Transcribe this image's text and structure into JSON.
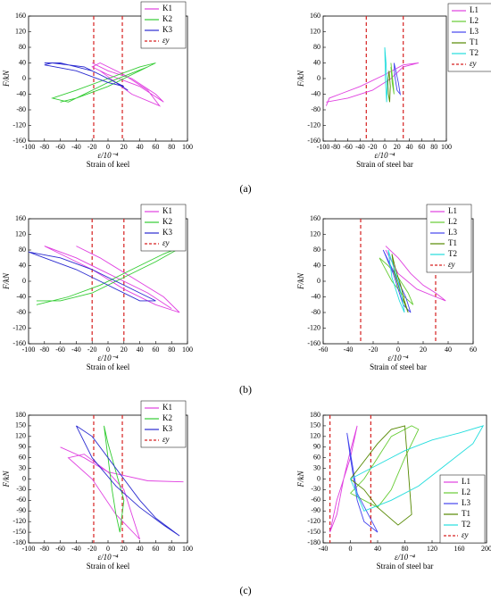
{
  "captions": [
    "(a)",
    "(b)",
    "(c)"
  ],
  "chart_data": [
    {
      "type": "line",
      "y_label": "F/kN",
      "x_label": "ε/10⁻⁴",
      "subtitle": "Strain of keel",
      "legend": "upper right",
      "xlim": [
        -100,
        100
      ],
      "ylim": [
        -160,
        160
      ],
      "xticks": [
        -100,
        -80,
        -60,
        -40,
        -20,
        0,
        20,
        40,
        60,
        80,
        100
      ],
      "yticks": [
        -160,
        -120,
        -80,
        -40,
        0,
        40,
        80,
        120,
        160
      ],
      "yield": {
        "name": "εy",
        "color": "#d62020",
        "values": [
          -18,
          18
        ]
      },
      "series": [
        {
          "name": "K1",
          "color": "#e040e0",
          "x": [
            -20,
            0,
            30,
            60,
            70,
            40,
            0,
            -20,
            -10,
            20,
            50,
            65,
            30,
            -10
          ],
          "y": [
            40,
            20,
            0,
            -40,
            -60,
            -20,
            10,
            30,
            40,
            10,
            -30,
            -70,
            -40,
            20
          ]
        },
        {
          "name": "K2",
          "color": "#33cc33",
          "x": [
            -60,
            -40,
            0,
            30,
            60,
            40,
            0,
            -40,
            -70,
            -50,
            0,
            50
          ],
          "y": [
            -60,
            -50,
            -20,
            10,
            40,
            30,
            0,
            -30,
            -50,
            -60,
            -10,
            30
          ]
        },
        {
          "name": "K3",
          "color": "#2a2ad0",
          "x": [
            -80,
            -60,
            -20,
            0,
            20,
            0,
            -40,
            -80,
            -70,
            -30,
            10,
            25
          ],
          "y": [
            40,
            40,
            20,
            0,
            -20,
            -10,
            20,
            35,
            40,
            30,
            -10,
            -30
          ]
        }
      ]
    },
    {
      "type": "line",
      "y_label": "F/kN",
      "x_label": "ε/10⁻⁴",
      "subtitle": "Strain of steel bar",
      "legend": "right",
      "xlim": [
        -100,
        100
      ],
      "ylim": [
        -160,
        160
      ],
      "xticks": [
        -100,
        -80,
        -60,
        -40,
        -20,
        0,
        20,
        40,
        60,
        80,
        100
      ],
      "yticks": [
        -160,
        -120,
        -80,
        -40,
        0,
        40,
        80,
        120,
        160
      ],
      "yield": {
        "name": "εy",
        "color": "#d62020",
        "values": [
          -30,
          30
        ]
      },
      "series": [
        {
          "name": "L1",
          "color": "#e040e0",
          "x": [
            -95,
            -60,
            -20,
            10,
            30,
            55,
            30,
            0,
            -40,
            -90,
            -95
          ],
          "y": [
            -60,
            -50,
            -30,
            0,
            30,
            40,
            35,
            10,
            -20,
            -50,
            -70
          ]
        },
        {
          "name": "L2",
          "color": "#66cc33",
          "x": [
            10,
            12,
            14,
            15,
            12,
            10
          ],
          "y": [
            40,
            10,
            -20,
            -40,
            -10,
            30
          ]
        },
        {
          "name": "L3",
          "color": "#4444ee",
          "x": [
            15,
            18,
            22,
            25,
            20,
            16,
            15
          ],
          "y": [
            40,
            20,
            -10,
            -40,
            -30,
            10,
            40
          ]
        },
        {
          "name": "T1",
          "color": "#558800",
          "x": [
            5,
            6,
            8,
            9,
            7,
            5
          ],
          "y": [
            -10,
            -40,
            -60,
            -20,
            20,
            -10
          ]
        },
        {
          "name": "T2",
          "color": "#22dddd",
          "x": [
            0,
            2,
            4,
            3,
            1,
            0
          ],
          "y": [
            80,
            40,
            -20,
            -60,
            0,
            80
          ]
        }
      ]
    },
    {
      "type": "line",
      "y_label": "F/kN",
      "x_label": "ε/10⁻⁴",
      "subtitle": "Strain of keel",
      "legend": "upper right",
      "xlim": [
        -100,
        100
      ],
      "ylim": [
        -160,
        160
      ],
      "xticks": [
        -100,
        -80,
        -60,
        -40,
        -20,
        0,
        20,
        40,
        60,
        80,
        100
      ],
      "yticks": [
        -160,
        -120,
        -80,
        -40,
        0,
        40,
        80,
        120,
        160
      ],
      "yield": {
        "name": "εy",
        "color": "#d62020",
        "values": [
          -20,
          20
        ]
      },
      "series": [
        {
          "name": "K1",
          "color": "#e040e0",
          "x": [
            -40,
            -10,
            30,
            70,
            90,
            60,
            20,
            -20,
            -60,
            -80,
            -40,
            0,
            50,
            80
          ],
          "y": [
            90,
            60,
            10,
            -40,
            -80,
            -60,
            -20,
            30,
            70,
            90,
            60,
            20,
            -30,
            -70
          ]
        },
        {
          "name": "K2",
          "color": "#33cc33",
          "x": [
            -90,
            -60,
            -20,
            20,
            60,
            95,
            70,
            30,
            -10,
            -50,
            -90
          ],
          "y": [
            -50,
            -50,
            -30,
            10,
            50,
            90,
            70,
            30,
            -10,
            -40,
            -60
          ]
        },
        {
          "name": "K3",
          "color": "#2a2ad0",
          "x": [
            -100,
            -60,
            -20,
            20,
            60,
            40,
            0,
            -40,
            -80,
            -100
          ],
          "y": [
            75,
            60,
            30,
            -10,
            -50,
            -50,
            -10,
            30,
            60,
            75
          ]
        }
      ]
    },
    {
      "type": "line",
      "y_label": "F/kN",
      "x_label": "ε/10⁻⁴",
      "subtitle": "Strain of steel bar",
      "legend": "upper right",
      "xlim": [
        -60,
        60
      ],
      "ylim": [
        -160,
        160
      ],
      "xticks": [
        -60,
        -40,
        -20,
        0,
        20,
        40,
        60
      ],
      "yticks": [
        -160,
        -120,
        -80,
        -40,
        0,
        40,
        80,
        120,
        160
      ],
      "yield": {
        "name": "εy",
        "color": "#d62020",
        "values": [
          -30,
          30
        ]
      },
      "series": [
        {
          "name": "L1",
          "color": "#e040e0",
          "x": [
            -10,
            0,
            10,
            20,
            30,
            38,
            30,
            15,
            0,
            -10
          ],
          "y": [
            90,
            60,
            20,
            -10,
            -30,
            -50,
            -40,
            -20,
            20,
            80
          ]
        },
        {
          "name": "L2",
          "color": "#66cc33",
          "x": [
            -15,
            -8,
            0,
            8,
            12,
            5,
            -5,
            -15
          ],
          "y": [
            60,
            40,
            10,
            -30,
            -60,
            -40,
            0,
            60
          ]
        },
        {
          "name": "L3",
          "color": "#4444ee",
          "x": [
            -12,
            -6,
            0,
            6,
            10,
            4,
            -4,
            -12
          ],
          "y": [
            80,
            40,
            0,
            -40,
            -80,
            -60,
            20,
            80
          ]
        },
        {
          "name": "T1",
          "color": "#558800",
          "x": [
            -5,
            -2,
            2,
            5,
            8,
            3,
            -3,
            -5
          ],
          "y": [
            70,
            30,
            -10,
            -50,
            -80,
            -40,
            20,
            70
          ]
        },
        {
          "name": "T2",
          "color": "#22dddd",
          "x": [
            -8,
            -4,
            0,
            3,
            5,
            1,
            -5,
            -8
          ],
          "y": [
            80,
            40,
            0,
            -40,
            -80,
            -50,
            10,
            80
          ]
        }
      ]
    },
    {
      "type": "line",
      "y_label": "F/kN",
      "x_label": "ε/10⁻⁴",
      "subtitle": "Strain of keel",
      "legend": "upper right",
      "xlim": [
        -100,
        100
      ],
      "ylim": [
        -180,
        180
      ],
      "xticks": [
        -100,
        -80,
        -60,
        -40,
        -20,
        0,
        20,
        40,
        60,
        80,
        100
      ],
      "yticks": [
        -180,
        -150,
        -120,
        -90,
        -60,
        -30,
        0,
        30,
        60,
        90,
        120,
        150,
        180
      ],
      "yield": {
        "name": "εy",
        "color": "#d62020",
        "values": [
          -18,
          18
        ]
      },
      "series": [
        {
          "name": "K1",
          "color": "#e040e0",
          "x": [
            -60,
            -30,
            0,
            20,
            40,
            10,
            -20,
            -50,
            -30,
            0,
            50,
            95
          ],
          "y": [
            90,
            60,
            20,
            -30,
            -170,
            -100,
            0,
            60,
            70,
            20,
            -5,
            -8
          ]
        },
        {
          "name": "K2",
          "color": "#33cc33",
          "x": [
            -5,
            0,
            5,
            10,
            15,
            20,
            10,
            0,
            -5
          ],
          "y": [
            150,
            60,
            -30,
            -100,
            -150,
            -60,
            20,
            100,
            150
          ]
        },
        {
          "name": "K3",
          "color": "#2a2ad0",
          "x": [
            -40,
            -20,
            0,
            20,
            40,
            60,
            90,
            70,
            40,
            10,
            -20,
            -40
          ],
          "y": [
            150,
            120,
            60,
            0,
            -60,
            -110,
            -160,
            -130,
            -80,
            -20,
            60,
            150
          ]
        }
      ]
    },
    {
      "type": "line",
      "y_label": "F/kN",
      "x_label": "ε/10⁻⁴",
      "subtitle": "Strain of steel bar",
      "legend": "lower right",
      "xlim": [
        -40,
        200
      ],
      "ylim": [
        -180,
        180
      ],
      "xticks": [
        -40,
        0,
        40,
        80,
        120,
        160,
        200
      ],
      "yticks": [
        -180,
        -150,
        -120,
        -90,
        -60,
        -30,
        0,
        30,
        60,
        90,
        120,
        150,
        180
      ],
      "yield": {
        "name": "εy",
        "color": "#d62020",
        "values": [
          -30,
          30
        ]
      },
      "series": [
        {
          "name": "L1",
          "color": "#e040e0",
          "x": [
            -30,
            -20,
            -10,
            0,
            10,
            0,
            -20,
            -30
          ],
          "y": [
            -150,
            -100,
            0,
            80,
            150,
            60,
            -60,
            -150
          ]
        },
        {
          "name": "L2",
          "color": "#66cc33",
          "x": [
            0,
            20,
            40,
            60,
            90,
            100,
            80,
            60,
            40,
            20,
            0
          ],
          "y": [
            -40,
            0,
            60,
            120,
            150,
            140,
            60,
            -30,
            -80,
            -60,
            -40
          ]
        },
        {
          "name": "L3",
          "color": "#4444ee",
          "x": [
            -5,
            0,
            5,
            10,
            20,
            40,
            10,
            -5
          ],
          "y": [
            130,
            60,
            0,
            -60,
            -120,
            -150,
            -40,
            130
          ]
        },
        {
          "name": "T1",
          "color": "#558800",
          "x": [
            0,
            20,
            40,
            60,
            80,
            90,
            70,
            40,
            20,
            0
          ],
          "y": [
            0,
            50,
            100,
            140,
            150,
            -100,
            -130,
            -80,
            -30,
            0
          ]
        },
        {
          "name": "T2",
          "color": "#22dddd",
          "x": [
            0,
            40,
            80,
            120,
            160,
            195,
            180,
            140,
            100,
            60,
            20,
            0
          ],
          "y": [
            0,
            40,
            80,
            110,
            130,
            150,
            100,
            40,
            -20,
            -60,
            -90,
            0
          ]
        }
      ]
    }
  ]
}
